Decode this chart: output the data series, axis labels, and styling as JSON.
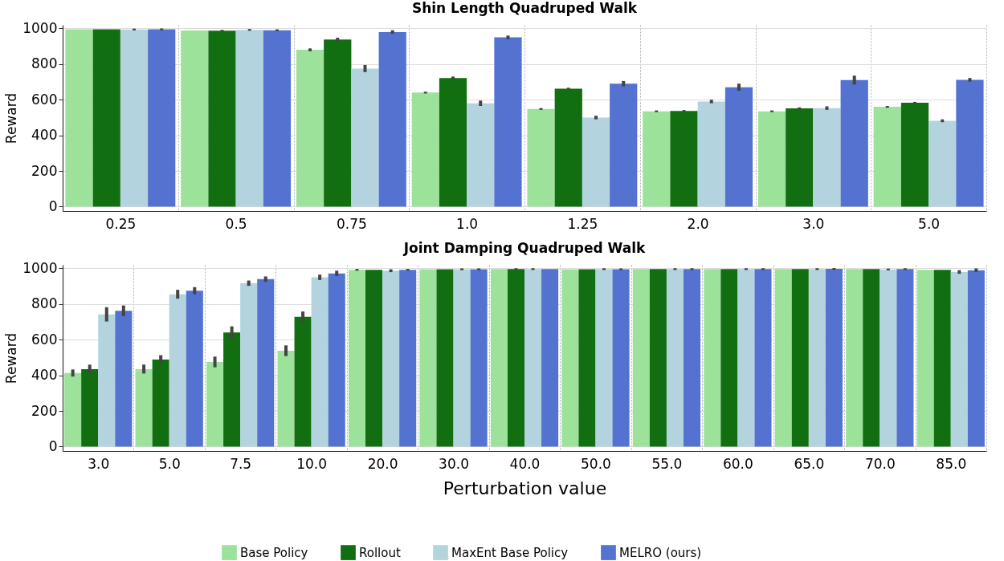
{
  "chart_data": [
    {
      "type": "bar",
      "title": "Shin Length Quadruped Walk",
      "ylabel": "Reward",
      "categories": [
        "0.25",
        "0.5",
        "0.75",
        "1.0",
        "1.25",
        "2.0",
        "3.0",
        "5.0"
      ],
      "ylim": [
        -25,
        1020
      ],
      "yticks": [
        0,
        200,
        400,
        600,
        800,
        1000
      ],
      "grid": true,
      "legend": "bottom",
      "series": [
        {
          "name": "Base Policy",
          "color": "#9de29b",
          "values": [
            995,
            988,
            880,
            640,
            548,
            535,
            535,
            560
          ],
          "errors": [
            null,
            null,
            8,
            5,
            5,
            5,
            5,
            5
          ]
        },
        {
          "name": "Rollout",
          "color": "#116e11",
          "values": [
            995,
            987,
            938,
            722,
            662,
            537,
            552,
            583
          ],
          "errors": [
            null,
            5,
            10,
            8,
            5,
            5,
            5,
            5
          ]
        },
        {
          "name": "MaxEnt Base Policy",
          "color": "#b3d4df",
          "values": [
            994,
            992,
            775,
            580,
            500,
            590,
            553,
            482
          ],
          "errors": [
            5,
            5,
            20,
            15,
            10,
            10,
            10,
            8
          ]
        },
        {
          "name": "MELRO (ours)",
          "color": "#5472d0",
          "values": [
            995,
            990,
            980,
            950,
            690,
            670,
            710,
            712
          ],
          "errors": [
            5,
            5,
            10,
            10,
            15,
            20,
            25,
            10
          ]
        }
      ]
    },
    {
      "type": "bar",
      "title": "Joint Damping Quadruped Walk",
      "xlabel": "Perturbation value",
      "ylabel": "Reward",
      "categories": [
        "3.0",
        "5.0",
        "7.5",
        "10.0",
        "20.0",
        "30.0",
        "40.0",
        "50.0",
        "55.0",
        "60.0",
        "65.0",
        "70.0",
        "85.0"
      ],
      "ylim": [
        -25,
        1020
      ],
      "yticks": [
        0,
        200,
        400,
        600,
        800,
        1000
      ],
      "grid": true,
      "legend": "bottom",
      "series": [
        {
          "name": "Base Policy",
          "color": "#9de29b",
          "values": [
            413,
            435,
            475,
            538,
            992,
            995,
            996,
            995,
            996,
            996,
            996,
            996,
            992
          ],
          "errors": [
            20,
            25,
            30,
            30,
            5,
            null,
            null,
            null,
            null,
            null,
            null,
            null,
            null
          ]
        },
        {
          "name": "Rollout",
          "color": "#116e11",
          "values": [
            435,
            488,
            640,
            728,
            992,
            995,
            996,
            995,
            996,
            996,
            996,
            996,
            992
          ],
          "errors": [
            25,
            25,
            35,
            30,
            null,
            null,
            5,
            null,
            null,
            null,
            null,
            null,
            null
          ]
        },
        {
          "name": "MaxEnt Base Policy",
          "color": "#b3d4df",
          "values": [
            742,
            855,
            917,
            950,
            987,
            995,
            996,
            996,
            996,
            996,
            996,
            994,
            980
          ],
          "errors": [
            40,
            25,
            15,
            15,
            8,
            5,
            5,
            5,
            5,
            5,
            5,
            5,
            10
          ]
        },
        {
          "name": "MELRO (ours)",
          "color": "#5472d0",
          "values": [
            762,
            875,
            940,
            972,
            992,
            995,
            996,
            995,
            996,
            996,
            997,
            996,
            990
          ],
          "errors": [
            30,
            20,
            15,
            15,
            5,
            5,
            null,
            5,
            5,
            5,
            5,
            5,
            10
          ]
        }
      ]
    }
  ]
}
